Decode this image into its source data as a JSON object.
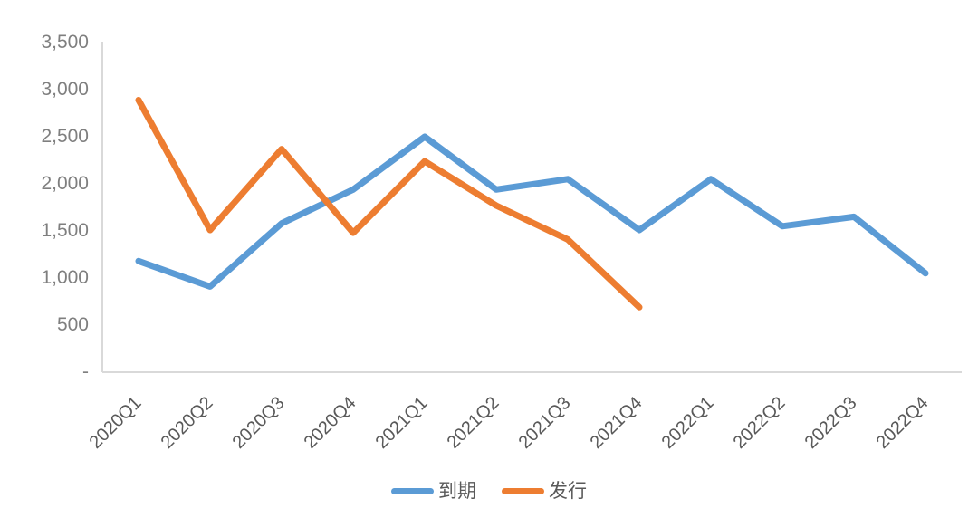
{
  "chart_data": {
    "type": "line",
    "title": "",
    "xlabel": "",
    "ylabel": "",
    "categories": [
      "2020Q1",
      "2020Q2",
      "2020Q3",
      "2020Q4",
      "2021Q1",
      "2021Q2",
      "2021Q3",
      "2021Q4",
      "2022Q1",
      "2022Q2",
      "2022Q3",
      "2022Q4"
    ],
    "series": [
      {
        "name": "到期",
        "color": "#5B9BD5",
        "values": [
          1170,
          900,
          1570,
          1930,
          2490,
          1930,
          2040,
          1500,
          2040,
          1540,
          1640,
          1040
        ]
      },
      {
        "name": "发行",
        "color": "#ED7D31",
        "values": [
          2880,
          1500,
          2360,
          1470,
          2230,
          1760,
          1400,
          680
        ]
      }
    ],
    "ylim": [
      0,
      3500
    ],
    "y_tick_interval": 500,
    "y_tick_labels": [
      "-",
      "500",
      "1,000",
      "1,500",
      "2,000",
      "2,500",
      "3,000",
      "3,500"
    ],
    "grid": false,
    "legend_position": "bottom",
    "axis_line_color": "#D9D9D9",
    "y_tick_label_color": "#7F7F7F",
    "x_tick_label_color": "#595959"
  }
}
